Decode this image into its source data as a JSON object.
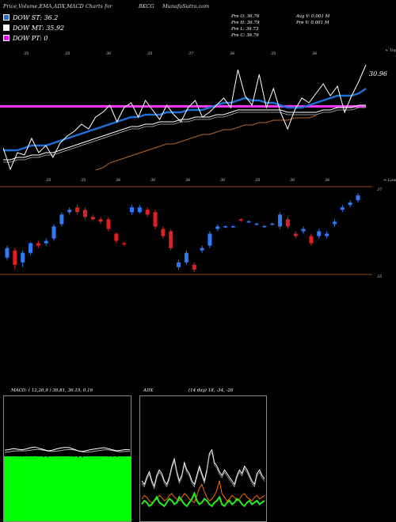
{
  "header": {
    "title": "Price,Volume,EMA,ADX,MACD Charts for",
    "symbol": "BKCG",
    "site": "MunafaSutra.com"
  },
  "legend": [
    {
      "label": "DOW ST: 36.2",
      "color": "#1e6fd8"
    },
    {
      "label": "DOW MT: 35.92",
      "color": "#ffffff"
    },
    {
      "label": "DOW PT: 0",
      "color": "#ff00ff"
    }
  ],
  "quote": {
    "open": "Pre  O: 36.76",
    "high": "Pre  H: 36.79",
    "low": "Pre  L: 36.73",
    "close": "Pre  C: 36.76",
    "avg_volume": "Avg V: 0.001 M",
    "prev_volume": "Pre  V: 0.001 M"
  },
  "chart_data": [
    {
      "type": "line",
      "name": "price-ema-panel",
      "annotations": {
        "right_top": "≈ Tops",
        "right_bottom": "≈ Lows",
        "last_price": "30.96"
      },
      "top_numbers": [
        "35",
        "35",
        "36",
        "35",
        "37",
        "36",
        "35",
        "36"
      ],
      "bottom_numbers": [
        "35",
        "35",
        "36",
        "36",
        "36",
        "36",
        "35",
        "36",
        "36"
      ],
      "price": [
        34.1,
        33.2,
        33.9,
        33.8,
        34.5,
        33.9,
        34.2,
        33.7,
        34.3,
        34.6,
        34.8,
        35.1,
        34.9,
        35.4,
        35.6,
        35.9,
        35.2,
        35.8,
        36.0,
        35.4,
        36.1,
        35.7,
        35.3,
        35.9,
        35.5,
        35.2,
        35.8,
        36.1,
        35.4,
        35.6,
        35.9,
        36.2,
        35.8,
        37.4,
        36.3,
        35.9,
        37.2,
        35.8,
        36.6,
        35.6,
        34.9,
        35.7,
        36.2,
        36.0,
        36.4,
        36.8,
        36.3,
        36.7,
        35.6,
        36.3,
        36.9,
        37.6
      ],
      "ema_fast": [
        34.0,
        34.0,
        34.0,
        34.1,
        34.2,
        34.2,
        34.2,
        34.3,
        34.4,
        34.5,
        34.6,
        34.7,
        34.8,
        34.9,
        35.0,
        35.1,
        35.2,
        35.3,
        35.4,
        35.4,
        35.5,
        35.5,
        35.5,
        35.6,
        35.6,
        35.6,
        35.7,
        35.7,
        35.7,
        35.8,
        35.9,
        36.0,
        36.0,
        36.1,
        36.2,
        36.1,
        36.1,
        36.0,
        36.0,
        35.9,
        35.8,
        35.8,
        35.8,
        35.9,
        36.0,
        36.1,
        36.2,
        36.3,
        36.3,
        36.3,
        36.4,
        36.6
      ],
      "ema_slow": [
        33.7,
        33.7,
        33.8,
        33.8,
        33.9,
        33.9,
        34.0,
        34.0,
        34.1,
        34.2,
        34.3,
        34.4,
        34.5,
        34.6,
        34.7,
        34.8,
        34.9,
        35.0,
        35.1,
        35.1,
        35.2,
        35.2,
        35.3,
        35.3,
        35.3,
        35.4,
        35.4,
        35.5,
        35.5,
        35.5,
        35.6,
        35.6,
        35.7,
        35.8,
        35.8,
        35.8,
        35.8,
        35.8,
        35.8,
        35.8,
        35.7,
        35.7,
        35.7,
        35.7,
        35.7,
        35.8,
        35.8,
        35.9,
        35.9,
        35.9,
        36.0,
        36.0
      ],
      "ema_long": [
        null,
        null,
        null,
        null,
        null,
        null,
        null,
        null,
        null,
        null,
        null,
        null,
        null,
        33.5,
        33.6,
        33.8,
        33.9,
        34.0,
        34.1,
        34.2,
        34.3,
        34.4,
        34.5,
        34.6,
        34.6,
        34.7,
        34.8,
        34.9,
        35.0,
        35.0,
        35.1,
        35.2,
        35.2,
        35.3,
        35.4,
        35.4,
        35.5,
        35.5,
        35.6,
        35.6,
        35.6,
        35.7,
        35.7,
        35.7,
        35.8,
        null,
        null,
        null,
        null,
        null,
        null,
        null
      ],
      "dow_pt_level": 35.85,
      "ylim": [
        32.5,
        38.5
      ]
    },
    {
      "type": "candlestick",
      "name": "daily-candles",
      "right_labels": [
        "37",
        "35"
      ],
      "candles": [
        {
          "o": 35.3,
          "c": 35.7,
          "h": 35.8,
          "l": 35.2
        },
        {
          "o": 35.6,
          "c": 35.0,
          "h": 35.7,
          "l": 34.8
        },
        {
          "o": 35.1,
          "c": 35.5,
          "h": 35.6,
          "l": 34.9
        },
        {
          "o": 35.5,
          "c": 35.9,
          "h": 35.95,
          "l": 35.4
        },
        {
          "o": 35.9,
          "c": 35.8,
          "h": 36.0,
          "l": 35.7
        },
        {
          "o": 35.9,
          "c": 36.0,
          "h": 36.1,
          "l": 35.8
        },
        {
          "o": 36.1,
          "c": 36.6,
          "h": 36.7,
          "l": 36.0
        },
        {
          "o": 36.7,
          "c": 37.1,
          "h": 37.2,
          "l": 36.6
        },
        {
          "o": 37.2,
          "c": 37.3,
          "h": 37.4,
          "l": 37.1
        },
        {
          "o": 37.4,
          "c": 37.2,
          "h": 37.5,
          "l": 37.1
        },
        {
          "o": 37.3,
          "c": 37.0,
          "h": 37.4,
          "l": 36.9
        },
        {
          "o": 37.0,
          "c": 36.9,
          "h": 37.1,
          "l": 36.85
        },
        {
          "o": 36.9,
          "c": 36.8,
          "h": 37.0,
          "l": 36.7
        },
        {
          "o": 36.9,
          "c": 36.5,
          "h": 37.0,
          "l": 36.4
        },
        {
          "o": 36.3,
          "c": 36.0,
          "h": 36.35,
          "l": 35.9
        },
        {
          "o": 35.9,
          "c": 35.85,
          "h": 35.95,
          "l": 35.8
        },
        {
          "o": 37.2,
          "c": 37.4,
          "h": 37.5,
          "l": 37.1
        },
        {
          "o": 37.2,
          "c": 37.4,
          "h": 37.5,
          "l": 37.15
        },
        {
          "o": 37.3,
          "c": 37.1,
          "h": 37.4,
          "l": 37.0
        },
        {
          "o": 37.2,
          "c": 36.6,
          "h": 37.3,
          "l": 36.5
        },
        {
          "o": 36.5,
          "c": 36.2,
          "h": 36.6,
          "l": 36.1
        },
        {
          "o": 36.4,
          "c": 35.7,
          "h": 36.5,
          "l": 35.6
        },
        {
          "o": 34.9,
          "c": 35.1,
          "h": 35.2,
          "l": 34.8
        },
        {
          "o": 35.1,
          "c": 35.5,
          "h": 35.6,
          "l": 35.0
        },
        {
          "o": 35.0,
          "c": 34.8,
          "h": 35.1,
          "l": 34.7
        },
        {
          "o": 35.6,
          "c": 35.7,
          "h": 35.8,
          "l": 35.5
        },
        {
          "o": 35.8,
          "c": 36.3,
          "h": 36.4,
          "l": 35.7
        },
        {
          "o": 36.5,
          "c": 36.6,
          "h": 36.7,
          "l": 36.4
        },
        {
          "o": 36.6,
          "c": 36.61,
          "h": 36.65,
          "l": 36.55
        },
        {
          "o": 36.6,
          "c": 36.61,
          "h": 36.66,
          "l": 36.56
        },
        {
          "o": 36.9,
          "c": 36.85,
          "h": 36.95,
          "l": 36.8
        },
        {
          "o": 36.8,
          "c": 36.82,
          "h": 36.86,
          "l": 36.75
        },
        {
          "o": 36.7,
          "c": 36.72,
          "h": 36.76,
          "l": 36.65
        },
        {
          "o": 36.6,
          "c": 36.62,
          "h": 36.66,
          "l": 36.55
        },
        {
          "o": 36.7,
          "c": 36.72,
          "h": 36.76,
          "l": 36.65
        },
        {
          "o": 36.6,
          "c": 37.1,
          "h": 37.2,
          "l": 36.5
        },
        {
          "o": 36.9,
          "c": 36.6,
          "h": 37.0,
          "l": 36.5
        },
        {
          "o": 36.3,
          "c": 36.2,
          "h": 36.4,
          "l": 36.1
        },
        {
          "o": 36.4,
          "c": 36.5,
          "h": 36.6,
          "l": 36.3
        },
        {
          "o": 36.2,
          "c": 35.9,
          "h": 36.3,
          "l": 35.8
        },
        {
          "o": 36.2,
          "c": 36.4,
          "h": 36.5,
          "l": 36.1
        },
        {
          "o": 36.2,
          "c": 36.3,
          "h": 36.4,
          "l": 36.1
        },
        {
          "o": 36.7,
          "c": 36.8,
          "h": 36.9,
          "l": 36.6
        },
        {
          "o": 37.3,
          "c": 37.4,
          "h": 37.5,
          "l": 37.2
        },
        {
          "o": 37.5,
          "c": 37.6,
          "h": 37.7,
          "l": 37.4
        },
        {
          "o": 37.7,
          "c": 37.9,
          "h": 38.0,
          "l": 37.6
        }
      ],
      "ylim": [
        34.0,
        38.3
      ]
    },
    {
      "type": "line",
      "name": "macd-panel",
      "title": "MACD: ( 12,26,9 ) 36.81, 36.15, 0.16",
      "macd": [
        0.12,
        0.14,
        0.17,
        0.15,
        0.13,
        0.16,
        0.2,
        0.22,
        0.18,
        0.14,
        0.1,
        0.12,
        0.16,
        0.19,
        0.21,
        0.2,
        0.15,
        0.1,
        0.08,
        0.11,
        0.14,
        0.16,
        0.18,
        0.2,
        0.17,
        0.13,
        0.1,
        0.12,
        0.14,
        0.13
      ],
      "signal": [
        0.1,
        0.12,
        0.14,
        0.15,
        0.15,
        0.15,
        0.17,
        0.19,
        0.19,
        0.17,
        0.14,
        0.13,
        0.14,
        0.16,
        0.18,
        0.19,
        0.18,
        0.15,
        0.12,
        0.11,
        0.12,
        0.14,
        0.16,
        0.18,
        0.18,
        0.16,
        0.13,
        0.12,
        0.13,
        0.13
      ],
      "histogram": [
        0.02,
        0.02,
        0.03,
        0.0,
        -0.02,
        0.01,
        0.03,
        0.03,
        -0.01,
        -0.03,
        -0.04,
        -0.01,
        0.02,
        0.03,
        0.03,
        0.01,
        -0.03,
        -0.05,
        -0.04,
        0.0,
        0.02,
        0.02,
        0.02,
        0.02,
        -0.01,
        -0.03,
        -0.03,
        0.0,
        0.01,
        0.0
      ],
      "ylim": [
        -1.5,
        1.5
      ]
    },
    {
      "type": "line",
      "name": "adx-panel",
      "title": "ADX",
      "params": "(14  day) 18, -34, -26",
      "adx": [
        30,
        28,
        32,
        35,
        30,
        27,
        33,
        36,
        34,
        30,
        28,
        32,
        38,
        42,
        35,
        30,
        33,
        40,
        36,
        34,
        30,
        28,
        33,
        38,
        34,
        30,
        36,
        45,
        47,
        40,
        38,
        35,
        33,
        36,
        34,
        32,
        30,
        28,
        33,
        36,
        34,
        38,
        36,
        33,
        30,
        28,
        34,
        36,
        33,
        31
      ],
      "plus_di": [
        8,
        10,
        9,
        7,
        8,
        10,
        12,
        9,
        8,
        7,
        9,
        11,
        10,
        8,
        9,
        12,
        10,
        8,
        7,
        9,
        11,
        14,
        10,
        8,
        9,
        11,
        10,
        8,
        7,
        9,
        10,
        12,
        8,
        7,
        9,
        10,
        8,
        9,
        11,
        10,
        8,
        7,
        9,
        10,
        8,
        9,
        10,
        8,
        9,
        10
      ],
      "minus_di": [
        10,
        12,
        11,
        9,
        8,
        9,
        10,
        12,
        11,
        9,
        10,
        12,
        13,
        11,
        10,
        9,
        11,
        13,
        12,
        10,
        9,
        8,
        12,
        16,
        18,
        14,
        11,
        9,
        10,
        12,
        15,
        20,
        13,
        11,
        9,
        10,
        12,
        11,
        9,
        10,
        12,
        13,
        11,
        10,
        9,
        11,
        12,
        10,
        11,
        12
      ],
      "ylim": [
        0,
        100
      ]
    }
  ]
}
